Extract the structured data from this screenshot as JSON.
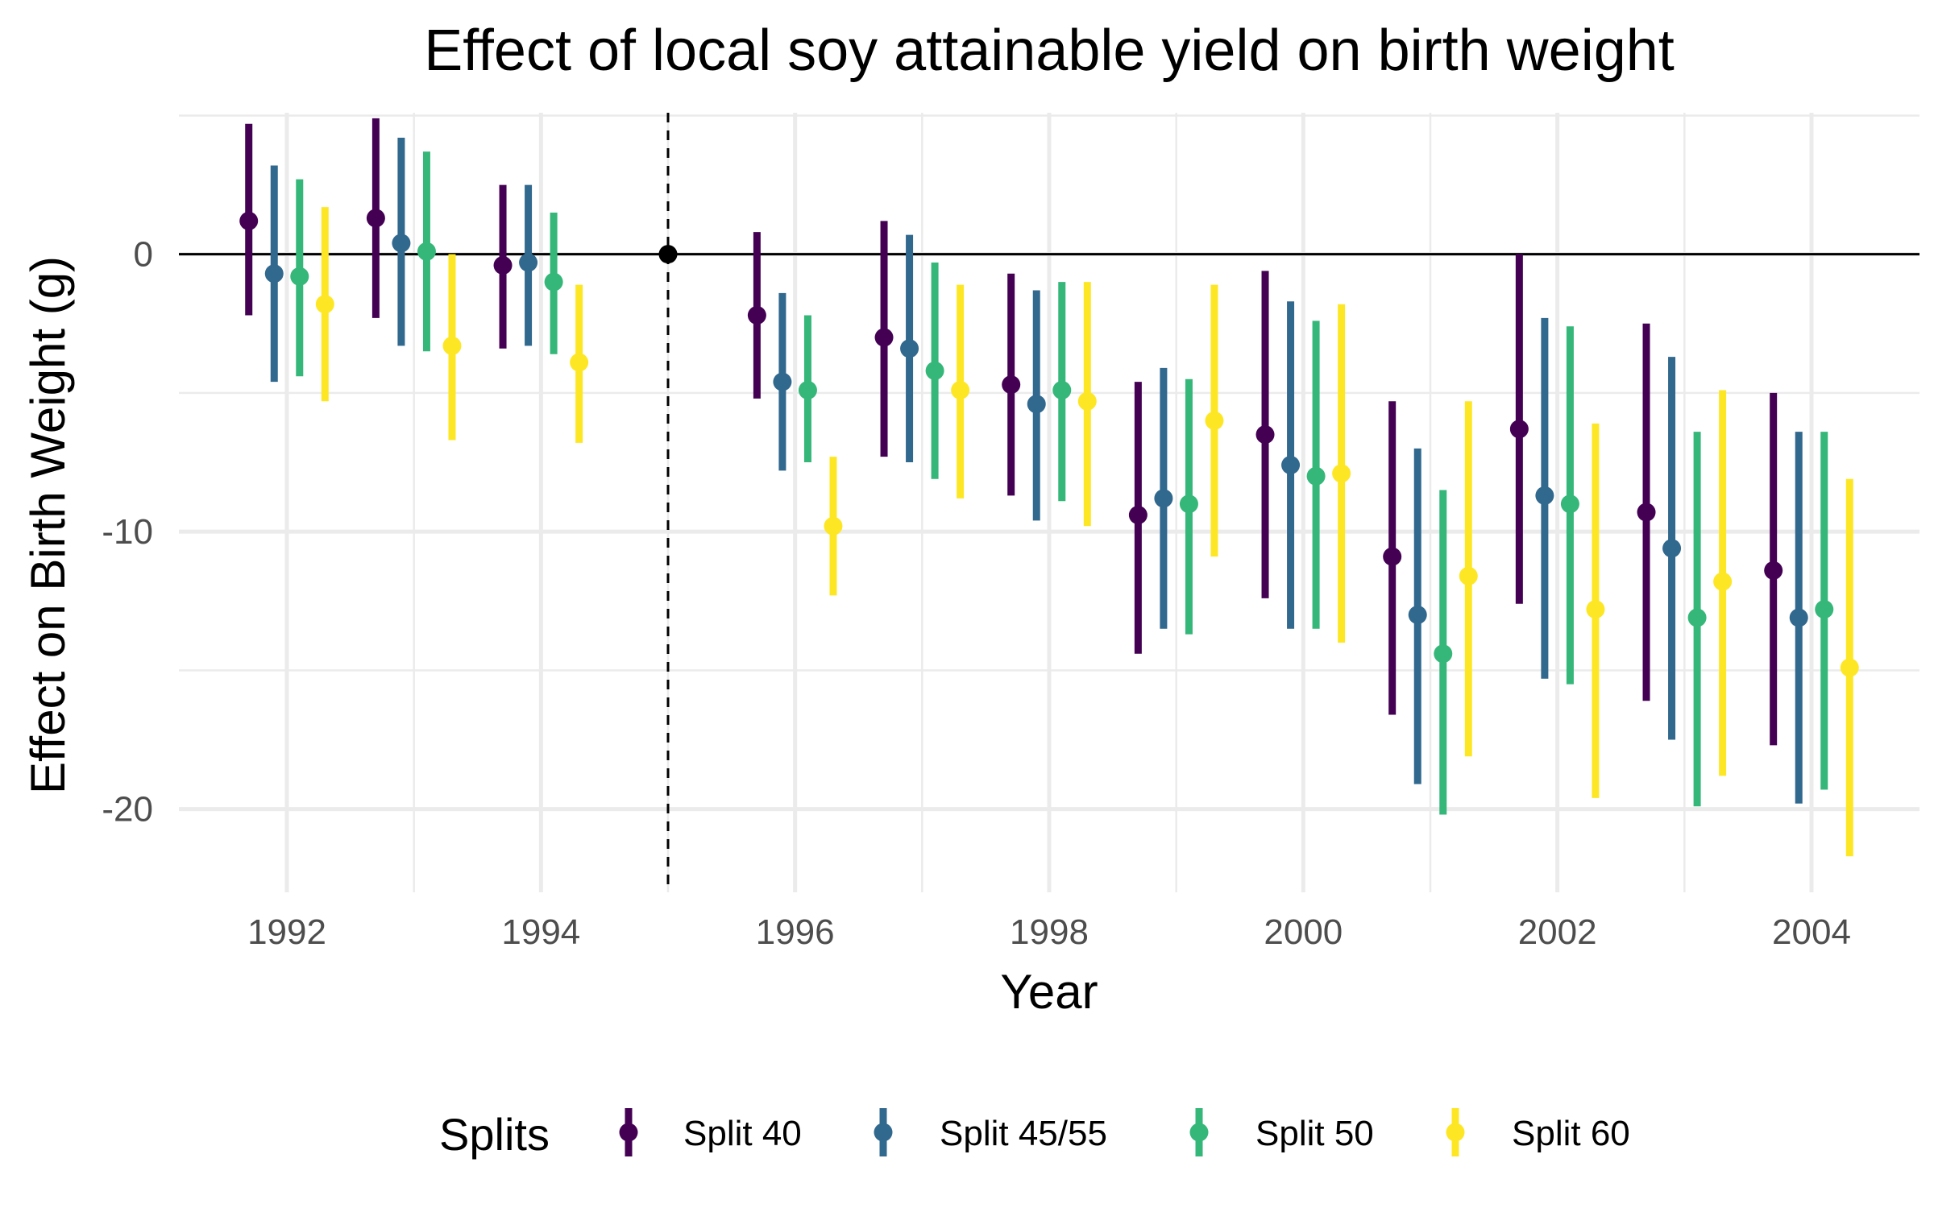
{
  "chart_data": {
    "type": "scatter",
    "title": "Effect of local soy attainable yield on birth weight",
    "xlabel": "Year",
    "ylabel": "Effect on Birth Weight (g)",
    "xlim": [
      1991.15,
      2004.85
    ],
    "ylim": [
      -23,
      5.1
    ],
    "xticks": [
      1992,
      1994,
      1996,
      1998,
      2000,
      2002,
      2004
    ],
    "yticks": [
      0,
      -10,
      -20
    ],
    "grid": true,
    "reference_year": 1995,
    "reference_value": 0,
    "legend": {
      "title": "Splits",
      "position": "bottom"
    },
    "years": [
      1992,
      1993,
      1994,
      1996,
      1997,
      1998,
      1999,
      2000,
      2001,
      2002,
      2003,
      2004
    ],
    "series": [
      {
        "name": "Split 40",
        "color": "#440154",
        "estimate": [
          1.2,
          1.3,
          -0.4,
          -2.2,
          -3.0,
          -4.7,
          -9.4,
          -6.5,
          -10.9,
          -6.3,
          -9.3,
          -11.4
        ],
        "lower": [
          -2.2,
          -2.3,
          -3.4,
          -5.2,
          -7.3,
          -8.7,
          -14.4,
          -12.4,
          -16.6,
          -12.6,
          -16.1,
          -17.7
        ],
        "upper": [
          4.7,
          4.9,
          2.5,
          0.8,
          1.2,
          -0.7,
          -4.6,
          -0.6,
          -5.3,
          0.0,
          -2.5,
          -5.0
        ]
      },
      {
        "name": "Split 45/55",
        "color": "#31688e",
        "estimate": [
          -0.7,
          0.4,
          -0.3,
          -4.6,
          -3.4,
          -5.4,
          -8.8,
          -7.6,
          -13.0,
          -8.7,
          -10.6,
          -13.1
        ],
        "lower": [
          -4.6,
          -3.3,
          -3.3,
          -7.8,
          -7.5,
          -9.6,
          -13.5,
          -13.5,
          -19.1,
          -15.3,
          -17.5,
          -19.8
        ],
        "upper": [
          3.2,
          4.2,
          2.5,
          -1.4,
          0.7,
          -1.3,
          -4.1,
          -1.7,
          -7.0,
          -2.3,
          -3.7,
          -6.4
        ]
      },
      {
        "name": "Split 50",
        "color": "#35b779",
        "estimate": [
          -0.8,
          0.1,
          -1.0,
          -4.9,
          -4.2,
          -4.9,
          -9.0,
          -8.0,
          -14.4,
          -9.0,
          -13.1,
          -12.8
        ],
        "lower": [
          -4.4,
          -3.5,
          -3.6,
          -7.5,
          -8.1,
          -8.9,
          -13.7,
          -13.5,
          -20.2,
          -15.5,
          -19.9,
          -19.3
        ],
        "upper": [
          2.7,
          3.7,
          1.5,
          -2.2,
          -0.3,
          -1.0,
          -4.5,
          -2.4,
          -8.5,
          -2.6,
          -6.4,
          -6.4
        ]
      },
      {
        "name": "Split 60",
        "color": "#fde725",
        "estimate": [
          -1.8,
          -3.3,
          -3.9,
          -9.8,
          -4.9,
          -5.3,
          -6.0,
          -7.9,
          -11.6,
          -12.8,
          -11.8,
          -14.9
        ],
        "lower": [
          -5.3,
          -6.7,
          -6.8,
          -12.3,
          -8.8,
          -9.8,
          -10.9,
          -14.0,
          -18.1,
          -19.6,
          -18.8,
          -21.7
        ],
        "upper": [
          1.7,
          0.0,
          -1.1,
          -7.3,
          -1.1,
          -1.0,
          -1.1,
          -1.8,
          -5.3,
          -6.1,
          -4.9,
          -8.1
        ]
      }
    ]
  }
}
